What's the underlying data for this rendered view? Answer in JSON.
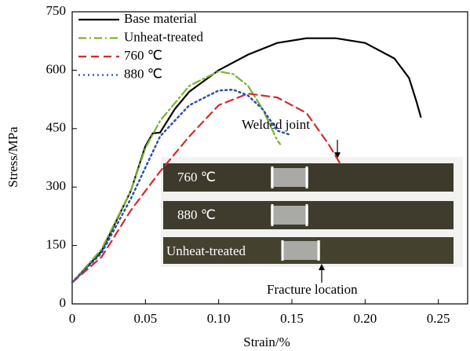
{
  "chart_data": {
    "type": "line",
    "x_label": "Strain/%",
    "y_label": "Stress/MPa",
    "xlim": [
      0,
      0.27
    ],
    "ylim": [
      0,
      750
    ],
    "xticks": [
      0,
      0.05,
      {
        "value": 0.1,
        "label": "0.10"
      },
      0.15,
      {
        "value": 0.2,
        "label": "0.20"
      },
      0.25
    ],
    "yticks": [
      0,
      150,
      300,
      450,
      600,
      750
    ],
    "legend": "upper left",
    "series": [
      {
        "name": "Base material",
        "color": "#000000",
        "dash": "solid",
        "x": [
          0,
          0.02,
          0.04,
          0.05,
          0.055,
          0.06,
          0.07,
          0.08,
          0.1,
          0.12,
          0.14,
          0.16,
          0.18,
          0.2,
          0.22,
          0.23,
          0.235,
          0.238
        ],
        "values": [
          55,
          135,
          290,
          405,
          438,
          440,
          500,
          545,
          600,
          640,
          670,
          682,
          682,
          670,
          630,
          580,
          520,
          480
        ]
      },
      {
        "name": "Unheat-treated",
        "color": "#7ab32e",
        "dash": "dashdot",
        "x": [
          0,
          0.02,
          0.04,
          0.05,
          0.06,
          0.08,
          0.1,
          0.11,
          0.12,
          0.13,
          0.14,
          0.142
        ],
        "values": [
          55,
          140,
          290,
          400,
          470,
          560,
          597,
          590,
          560,
          500,
          420,
          410
        ]
      },
      {
        "name": "760 ℃",
        "color": "#d42a2a",
        "dash": "dashed",
        "x": [
          0,
          0.02,
          0.04,
          0.06,
          0.08,
          0.1,
          0.12,
          0.14,
          0.16,
          0.175,
          0.183
        ],
        "values": [
          55,
          120,
          240,
          340,
          430,
          510,
          540,
          530,
          490,
          410,
          360
        ]
      },
      {
        "name": "880 ℃",
        "color": "#2a4fb0",
        "dash": "dotted",
        "x": [
          0,
          0.02,
          0.04,
          0.05,
          0.06,
          0.08,
          0.1,
          0.11,
          0.12,
          0.13,
          0.14,
          0.148
        ],
        "values": [
          55,
          130,
          270,
          350,
          430,
          510,
          548,
          550,
          535,
          500,
          445,
          435
        ]
      }
    ],
    "annotations": [
      "Welded joint",
      "Fracture location"
    ],
    "inset_labels": [
      "760 ℃",
      "880 ℃",
      "Unheat-treated"
    ]
  }
}
